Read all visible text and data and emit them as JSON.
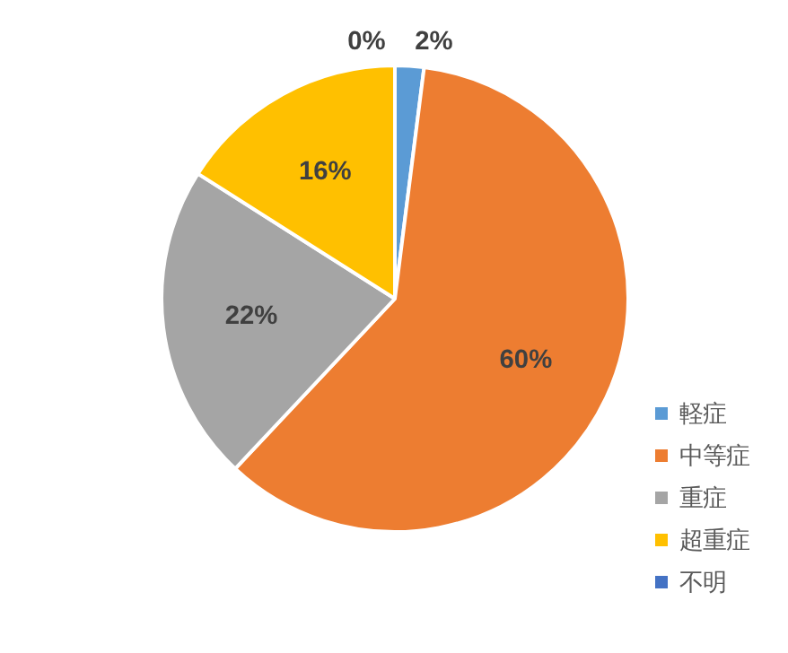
{
  "chart_data": {
    "type": "pie",
    "categories": [
      "軽症",
      "中等症",
      "重症",
      "超重症",
      "不明"
    ],
    "values": [
      2,
      60,
      22,
      16,
      0
    ],
    "colors": [
      "#5b9bd5",
      "#ed7d31",
      "#a5a5a5",
      "#ffc000",
      "#4472c4"
    ],
    "value_labels": [
      "2%",
      "60%",
      "22%",
      "16%",
      "0%"
    ],
    "legend": "bottom right"
  }
}
